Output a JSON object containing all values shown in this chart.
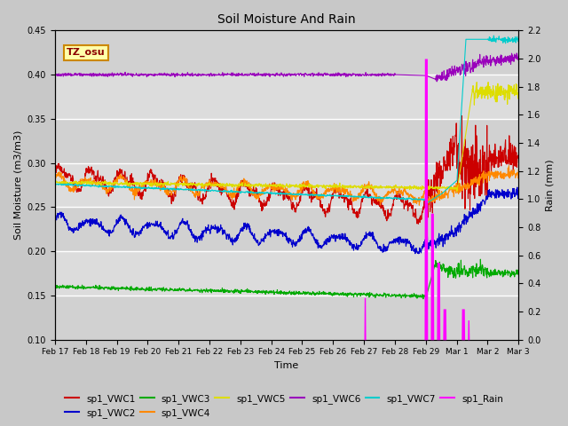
{
  "title": "Soil Moisture And Rain",
  "xlabel": "Time",
  "ylabel_left": "Soil Moisture (m3/m3)",
  "ylabel_right": "Rain (mm)",
  "ylim_left": [
    0.1,
    0.45
  ],
  "ylim_right": [
    0.0,
    2.2
  ],
  "annotation": "TZ_osu",
  "series_colors": {
    "sp1_VWC1": "#cc0000",
    "sp1_VWC2": "#0000cc",
    "sp1_VWC3": "#00aa00",
    "sp1_VWC4": "#ff8800",
    "sp1_VWC5": "#dddd00",
    "sp1_VWC6": "#9900bb",
    "sp1_VWC7": "#00cccc",
    "sp1_Rain": "#ff00ff"
  },
  "x_ticks": [
    "Feb 17",
    "Feb 18",
    "Feb 19",
    "Feb 20",
    "Feb 21",
    "Feb 22",
    "Feb 23",
    "Feb 24",
    "Feb 25",
    "Feb 26",
    "Feb 27",
    "Feb 28",
    "Feb 29",
    "Mar 1",
    "Mar 2",
    "Mar 3"
  ],
  "yticks_left": [
    0.1,
    0.15,
    0.2,
    0.25,
    0.3,
    0.35,
    0.4,
    0.45
  ],
  "yticks_right": [
    0.0,
    0.2,
    0.4,
    0.6,
    0.8,
    1.0,
    1.2,
    1.4,
    1.6,
    1.8,
    2.0,
    2.2
  ]
}
